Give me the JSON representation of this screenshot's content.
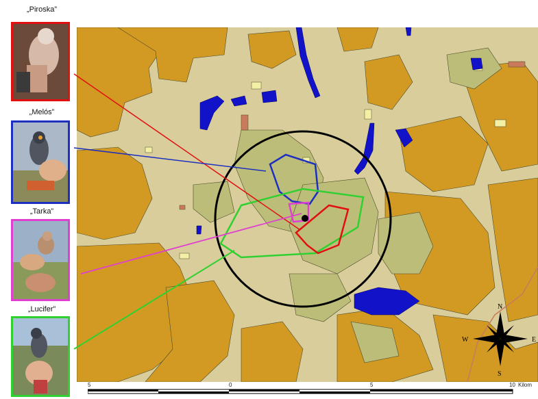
{
  "birds": [
    {
      "name": "„Piroska”",
      "color": "#e01010"
    },
    {
      "name": "„Melós”",
      "color": "#1c2fbf"
    },
    {
      "name": "„Tarka”",
      "color": "#e040d0"
    },
    {
      "name": "„Lucifer”",
      "color": "#30d030"
    }
  ],
  "compass": {
    "n": "N",
    "s": "S",
    "e": "E",
    "w": "W"
  },
  "scale": {
    "ticks": [
      "5",
      "0",
      "5",
      "10"
    ],
    "unit": "Kilom"
  },
  "colors": {
    "farmland": "#d29a23",
    "grassland": "#d9cd9c",
    "meadow": "#bdbd7a",
    "water": "#1212c8",
    "pale": "#f3efa5",
    "outline": "#4a4a2a"
  }
}
